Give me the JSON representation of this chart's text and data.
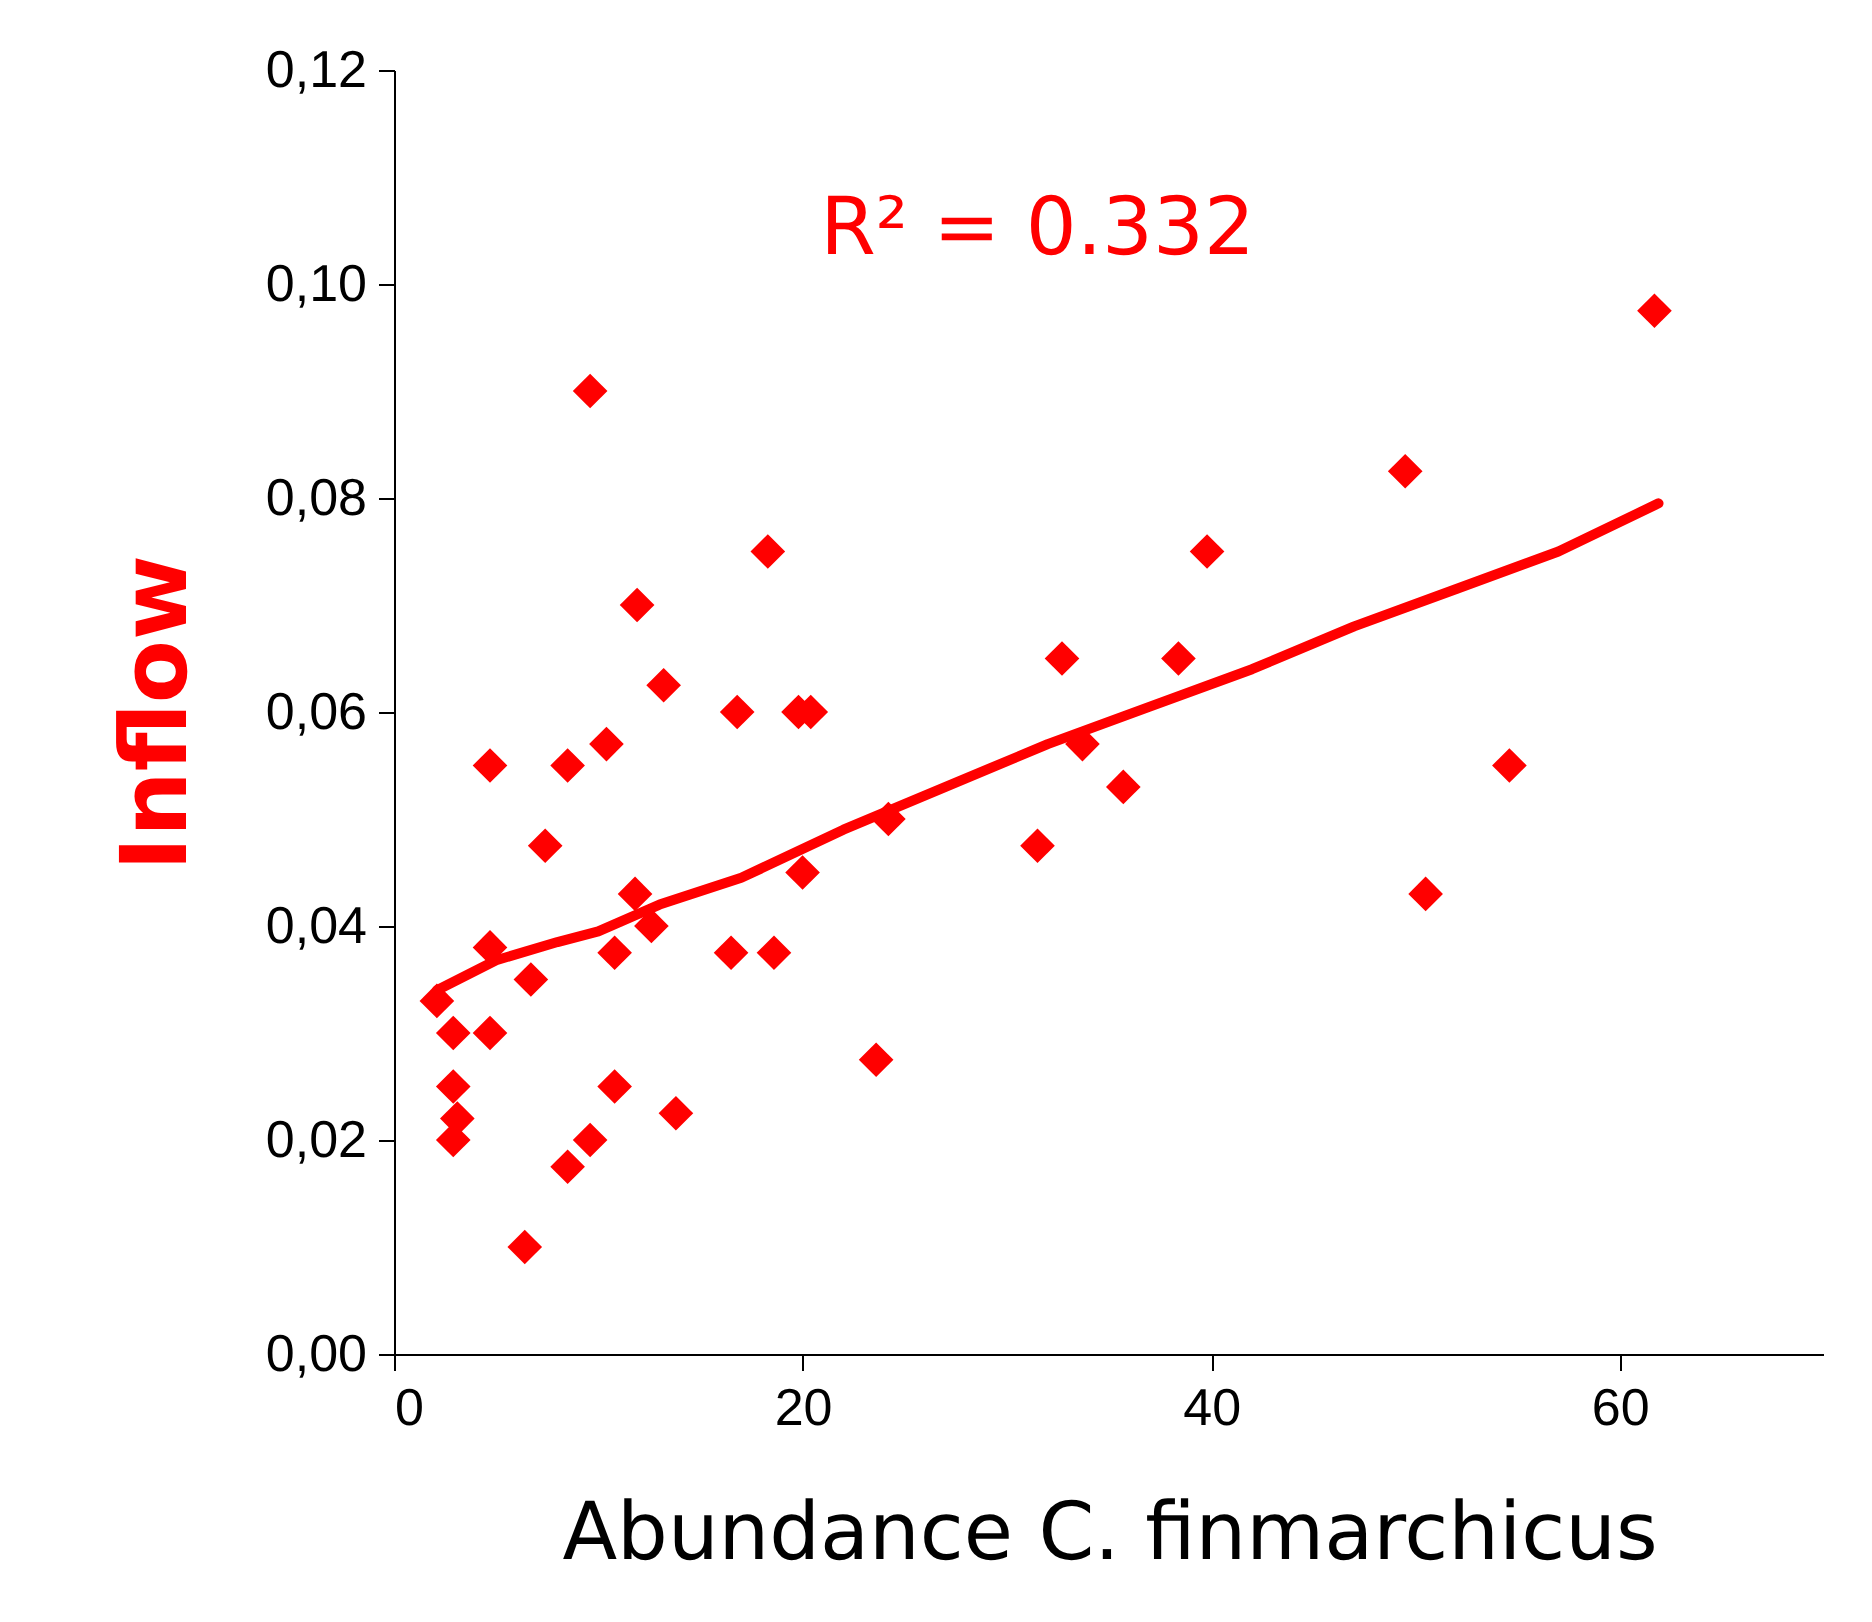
{
  "chart_data": {
    "type": "scatter",
    "xlabel": "Abundance C. finmarchicus",
    "ylabel": "Inflow",
    "annotations": [
      "R² = 0.332"
    ],
    "xlim": [
      0,
      70
    ],
    "xticks": [
      0,
      20,
      40,
      60
    ],
    "ylim": [
      0,
      0.12
    ],
    "yticks": [
      {
        "value": 0,
        "label": "0,00"
      },
      {
        "value": 0.02,
        "label": "0,02"
      },
      {
        "value": 0.04,
        "label": "0,04"
      },
      {
        "value": 0.06,
        "label": "0,06"
      },
      {
        "value": 0.08,
        "label": "0,08"
      },
      {
        "value": 0.1,
        "label": "0,10"
      },
      {
        "value": 0.12,
        "label": "0,12"
      }
    ],
    "grid": false,
    "marker": "diamond",
    "series": [
      {
        "color": "#ff0000",
        "x": [
          2.1,
          2.9,
          4.7,
          2.9,
          3.1,
          2.9,
          4.7,
          4.7,
          6.7,
          6.4,
          7.4,
          8.5,
          8.5,
          9.6,
          9.6,
          10.4,
          10.8,
          10.8,
          11.9,
          11.8,
          12.6,
          13.2,
          13.8,
          16.8,
          16.5,
          18.3,
          18.6,
          19.8,
          20.4,
          20,
          23.6,
          24.2,
          31.5,
          32.7,
          33.7,
          35.7,
          38.4,
          39.8,
          49.5,
          50.5,
          54.6,
          61.7
        ],
        "values": [
          0.033,
          0.03,
          0.03,
          0.025,
          0.022,
          0.02,
          0.038,
          0.055,
          0.035,
          0.01,
          0.0475,
          0.055,
          0.0175,
          0.09,
          0.02,
          0.057,
          0.0375,
          0.025,
          0.07,
          0.043,
          0.04,
          0.0625,
          0.0225,
          0.06,
          0.0375,
          0.075,
          0.0375,
          0.06,
          0.06,
          0.045,
          0.0275,
          0.05,
          0.0475,
          0.065,
          0.057,
          0.053,
          0.065,
          0.075,
          0.0825,
          0.043,
          0.055,
          0.0975
        ]
      },
      {
        "type": "line",
        "color": "#ff0000",
        "marker": "none",
        "x": [
          2.1,
          5,
          8,
          10,
          13,
          17,
          22,
          27,
          32,
          37,
          42,
          47,
          52,
          57,
          61.9
        ],
        "values": [
          0.034,
          0.0368,
          0.0385,
          0.0395,
          0.042,
          0.0445,
          0.049,
          0.053,
          0.057,
          0.0605,
          0.064,
          0.068,
          0.0715,
          0.075,
          0.0795
        ]
      }
    ]
  }
}
